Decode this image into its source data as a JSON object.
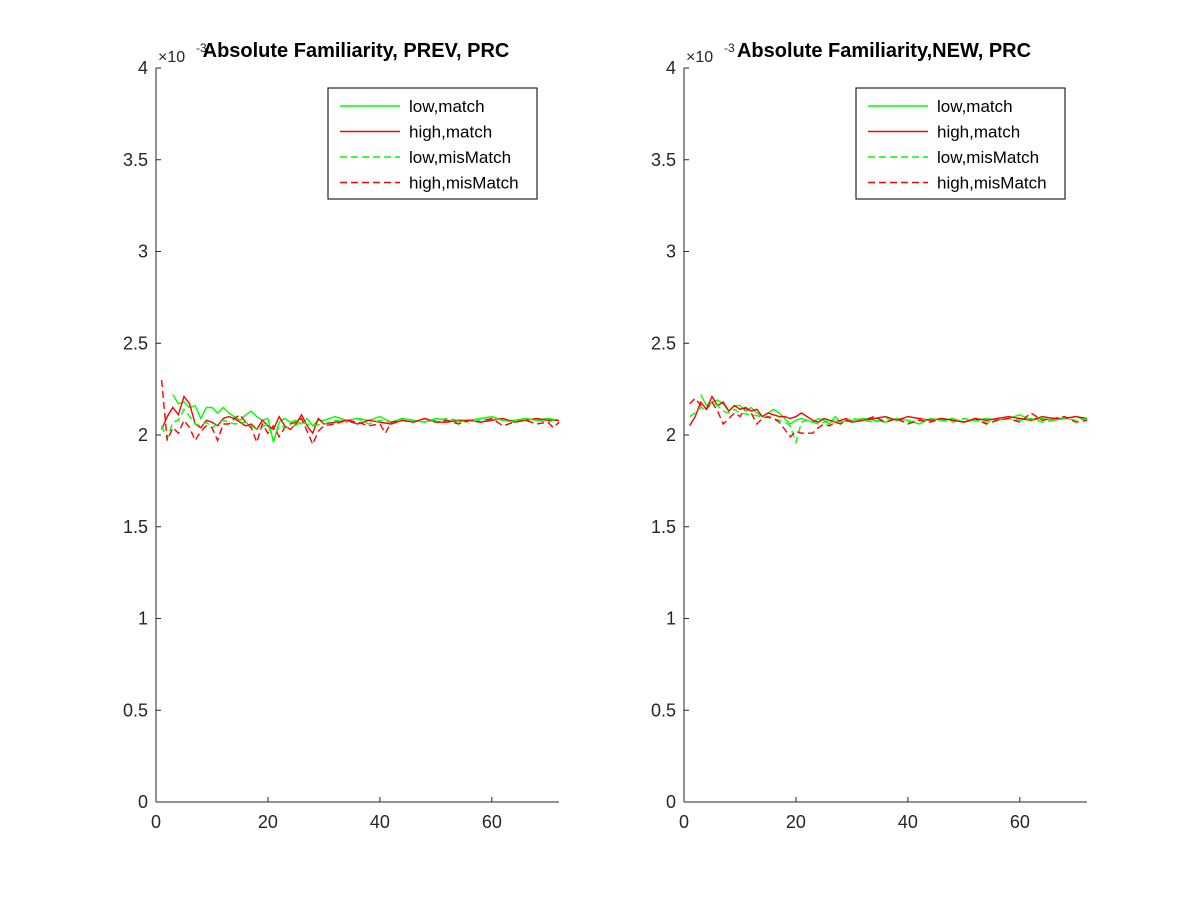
{
  "figure": {
    "background": "#ffffff"
  },
  "chart_data": [
    {
      "type": "line",
      "title": "Absolute Familiarity, PREV, PRC",
      "y_exponent_label": "×10^-3",
      "xlim": [
        0,
        72
      ],
      "ylim": [
        0,
        4
      ],
      "y_scale": 0.001,
      "xticks": [
        0,
        20,
        40,
        60
      ],
      "yticks": [
        0,
        0.5,
        1,
        1.5,
        2,
        2.5,
        3,
        3.5,
        4
      ],
      "ytick_labels": [
        "0",
        "0.5",
        "1",
        "1.5",
        "2",
        "2.5",
        "3",
        "3.5",
        "4"
      ],
      "grid": false,
      "legend_position": "top-right",
      "series": [
        {
          "name": "low,match",
          "color": "#00ff00",
          "style": "solid",
          "x": [
            3,
            4,
            5,
            6,
            7,
            8,
            9,
            10,
            11,
            12,
            13,
            14,
            15,
            16,
            17,
            18,
            19,
            20,
            21,
            22,
            23,
            24,
            25,
            26,
            27,
            28,
            29,
            30,
            32,
            34,
            36,
            38,
            40,
            42,
            44,
            46,
            48,
            50,
            52,
            54,
            56,
            58,
            60,
            62,
            64,
            66,
            68,
            70,
            72
          ],
          "y": [
            2.22,
            2.17,
            2.18,
            2.15,
            2.16,
            2.09,
            2.15,
            2.15,
            2.12,
            2.15,
            2.12,
            2.1,
            2.08,
            2.11,
            2.13,
            2.1,
            2.08,
            2.09,
            1.96,
            2.07,
            2.09,
            2.07,
            2.08,
            2.06,
            2.09,
            2.05,
            2.08,
            2.08,
            2.1,
            2.08,
            2.09,
            2.08,
            2.1,
            2.07,
            2.09,
            2.08,
            2.07,
            2.09,
            2.08,
            2.07,
            2.08,
            2.09,
            2.1,
            2.08,
            2.08,
            2.09,
            2.08,
            2.09,
            2.08
          ]
        },
        {
          "name": "high,match",
          "color": "#ff0000",
          "style": "solid",
          "x": [
            1,
            2,
            3,
            4,
            5,
            6,
            7,
            8,
            9,
            10,
            11,
            12,
            13,
            14,
            15,
            16,
            17,
            18,
            19,
            20,
            21,
            22,
            23,
            24,
            25,
            26,
            27,
            28,
            29,
            30,
            32,
            34,
            36,
            38,
            40,
            42,
            44,
            46,
            48,
            50,
            52,
            54,
            56,
            58,
            60,
            62,
            64,
            66,
            68,
            70,
            72
          ],
          "y": [
            2.03,
            2.1,
            2.15,
            2.11,
            2.21,
            2.17,
            2.06,
            2.04,
            2.08,
            2.07,
            2.05,
            2.09,
            2.1,
            2.09,
            2.07,
            2.05,
            2.06,
            2.03,
            2.08,
            2.05,
            2.03,
            2.1,
            2.05,
            2.03,
            2.06,
            2.11,
            2.05,
            2.01,
            2.09,
            2.06,
            2.07,
            2.08,
            2.06,
            2.08,
            2.07,
            2.06,
            2.08,
            2.07,
            2.09,
            2.07,
            2.07,
            2.08,
            2.08,
            2.07,
            2.08,
            2.09,
            2.07,
            2.08,
            2.09,
            2.08,
            2.08
          ]
        },
        {
          "name": "low,misMatch",
          "color": "#00ff00",
          "style": "dashed",
          "x": [
            1,
            2,
            3,
            4,
            5,
            6,
            7,
            8,
            9,
            10,
            12,
            14,
            16,
            18,
            20,
            21,
            22,
            24,
            26,
            28,
            30,
            32,
            34,
            36,
            38,
            40,
            42,
            44,
            46,
            48,
            50,
            52,
            54,
            56,
            58,
            60,
            62,
            64,
            66,
            68,
            70,
            72
          ],
          "y": [
            2.05,
            1.98,
            2.07,
            2.08,
            2.14,
            2.1,
            2.06,
            2.05,
            2.07,
            2.04,
            2.08,
            2.06,
            2.07,
            2.03,
            2.06,
            1.97,
            2.05,
            2.04,
            2.07,
            2.05,
            2.06,
            2.08,
            2.07,
            2.09,
            2.06,
            2.08,
            2.07,
            2.09,
            2.08,
            2.07,
            2.08,
            2.09,
            2.08,
            2.07,
            2.08,
            2.09,
            2.08,
            2.07,
            2.09,
            2.08,
            2.07,
            2.09
          ]
        },
        {
          "name": "high,misMatch",
          "color": "#ff0000",
          "style": "dashed",
          "x": [
            1,
            2,
            3,
            4,
            5,
            6,
            7,
            8,
            9,
            10,
            11,
            12,
            13,
            14,
            15,
            16,
            17,
            18,
            19,
            20,
            21,
            22,
            23,
            24,
            25,
            26,
            27,
            28,
            29,
            30,
            32,
            34,
            36,
            38,
            40,
            41,
            42,
            44,
            46,
            48,
            50,
            52,
            54,
            56,
            58,
            60,
            62,
            64,
            66,
            68,
            70,
            71,
            72
          ],
          "y": [
            2.3,
            1.97,
            2.04,
            2.01,
            2.08,
            2.04,
            1.97,
            2.02,
            2.05,
            2.04,
            1.97,
            2.06,
            2.06,
            2.09,
            2.11,
            2.07,
            2.04,
            1.96,
            2.06,
            2.01,
            2.05,
            1.99,
            2.04,
            2.06,
            2.07,
            2.09,
            2.02,
            1.95,
            2.02,
            2.05,
            2.06,
            2.08,
            2.07,
            2.05,
            2.06,
            2.01,
            2.07,
            2.08,
            2.07,
            2.09,
            2.07,
            2.08,
            2.06,
            2.08,
            2.07,
            2.09,
            2.05,
            2.07,
            2.08,
            2.06,
            2.07,
            2.04,
            2.07
          ]
        }
      ]
    },
    {
      "type": "line",
      "title": "Absolute Familiarity,NEW, PRC",
      "y_exponent_label": "×10^-3",
      "xlim": [
        0,
        72
      ],
      "ylim": [
        0,
        4
      ],
      "y_scale": 0.001,
      "xticks": [
        0,
        20,
        40,
        60
      ],
      "yticks": [
        0,
        0.5,
        1,
        1.5,
        2,
        2.5,
        3,
        3.5,
        4
      ],
      "ytick_labels": [
        "0",
        "0.5",
        "1",
        "1.5",
        "2",
        "2.5",
        "3",
        "3.5",
        "4"
      ],
      "grid": false,
      "legend_position": "top-right",
      "series": [
        {
          "name": "low,match",
          "color": "#00ff00",
          "style": "solid",
          "x": [
            3,
            4,
            5,
            6,
            7,
            8,
            9,
            10,
            11,
            12,
            13,
            14,
            15,
            16,
            17,
            18,
            19,
            20,
            21,
            22,
            23,
            24,
            25,
            26,
            27,
            28,
            30,
            32,
            34,
            36,
            38,
            40,
            42,
            44,
            46,
            48,
            50,
            52,
            54,
            56,
            58,
            60,
            62,
            64,
            66,
            68,
            70,
            72
          ],
          "y": [
            2.22,
            2.16,
            2.18,
            2.19,
            2.17,
            2.13,
            2.16,
            2.16,
            2.13,
            2.15,
            2.12,
            2.1,
            2.12,
            2.14,
            2.12,
            2.09,
            2.06,
            2.08,
            2.09,
            2.08,
            2.07,
            2.09,
            2.08,
            2.06,
            2.1,
            2.07,
            2.08,
            2.09,
            2.08,
            2.07,
            2.09,
            2.08,
            2.06,
            2.09,
            2.08,
            2.09,
            2.07,
            2.08,
            2.09,
            2.08,
            2.09,
            2.11,
            2.08,
            2.09,
            2.08,
            2.09,
            2.1,
            2.08
          ]
        },
        {
          "name": "high,match",
          "color": "#ff0000",
          "style": "solid",
          "x": [
            1,
            2,
            3,
            4,
            5,
            6,
            7,
            8,
            9,
            10,
            11,
            12,
            13,
            14,
            15,
            16,
            17,
            18,
            19,
            20,
            21,
            22,
            23,
            24,
            25,
            26,
            27,
            28,
            29,
            30,
            32,
            34,
            36,
            38,
            40,
            42,
            44,
            46,
            48,
            50,
            52,
            54,
            56,
            58,
            60,
            62,
            64,
            66,
            68,
            70,
            72
          ],
          "y": [
            2.05,
            2.1,
            2.18,
            2.14,
            2.21,
            2.16,
            2.18,
            2.13,
            2.16,
            2.14,
            2.15,
            2.13,
            2.14,
            2.1,
            2.12,
            2.11,
            2.1,
            2.1,
            2.09,
            2.1,
            2.12,
            2.1,
            2.08,
            2.07,
            2.09,
            2.08,
            2.07,
            2.08,
            2.09,
            2.07,
            2.08,
            2.09,
            2.1,
            2.08,
            2.1,
            2.09,
            2.08,
            2.09,
            2.08,
            2.07,
            2.09,
            2.08,
            2.09,
            2.1,
            2.09,
            2.08,
            2.1,
            2.09,
            2.09,
            2.1,
            2.09
          ]
        },
        {
          "name": "low,misMatch",
          "color": "#00ff00",
          "style": "dashed",
          "x": [
            1,
            2,
            3,
            4,
            5,
            6,
            7,
            8,
            9,
            10,
            12,
            14,
            16,
            18,
            19,
            20,
            21,
            22,
            24,
            26,
            28,
            30,
            32,
            34,
            36,
            38,
            40,
            42,
            44,
            46,
            48,
            50,
            52,
            54,
            56,
            58,
            60,
            62,
            64,
            66,
            68,
            70,
            72
          ],
          "y": [
            2.1,
            2.12,
            2.15,
            2.14,
            2.18,
            2.16,
            2.13,
            2.12,
            2.14,
            2.12,
            2.11,
            2.1,
            2.09,
            2.07,
            2.05,
            1.96,
            2.07,
            2.08,
            2.06,
            2.08,
            2.07,
            2.09,
            2.08,
            2.07,
            2.09,
            2.08,
            2.07,
            2.08,
            2.09,
            2.08,
            2.07,
            2.09,
            2.08,
            2.07,
            2.08,
            2.09,
            2.08,
            2.09,
            2.07,
            2.08,
            2.09,
            2.08,
            2.09
          ]
        },
        {
          "name": "high,misMatch",
          "color": "#ff0000",
          "style": "dashed",
          "x": [
            1,
            2,
            3,
            4,
            5,
            6,
            7,
            8,
            9,
            10,
            11,
            12,
            13,
            14,
            15,
            16,
            17,
            18,
            19,
            20,
            21,
            22,
            23,
            24,
            25,
            26,
            27,
            28,
            29,
            30,
            32,
            34,
            36,
            38,
            40,
            42,
            44,
            46,
            48,
            50,
            52,
            54,
            56,
            58,
            60,
            62,
            64,
            66,
            68,
            70,
            72
          ],
          "y": [
            2.17,
            2.2,
            2.16,
            2.14,
            2.18,
            2.13,
            2.06,
            2.09,
            2.12,
            2.1,
            2.15,
            2.12,
            2.06,
            2.09,
            2.1,
            2.09,
            2.07,
            2.03,
            1.99,
            2.02,
            2.01,
            2.01,
            2.01,
            2.04,
            2.06,
            2.05,
            2.07,
            2.06,
            2.08,
            2.07,
            2.08,
            2.1,
            2.07,
            2.09,
            2.06,
            2.08,
            2.07,
            2.09,
            2.08,
            2.07,
            2.09,
            2.06,
            2.08,
            2.09,
            2.07,
            2.12,
            2.08,
            2.09,
            2.1,
            2.07,
            2.08
          ]
        }
      ]
    }
  ]
}
